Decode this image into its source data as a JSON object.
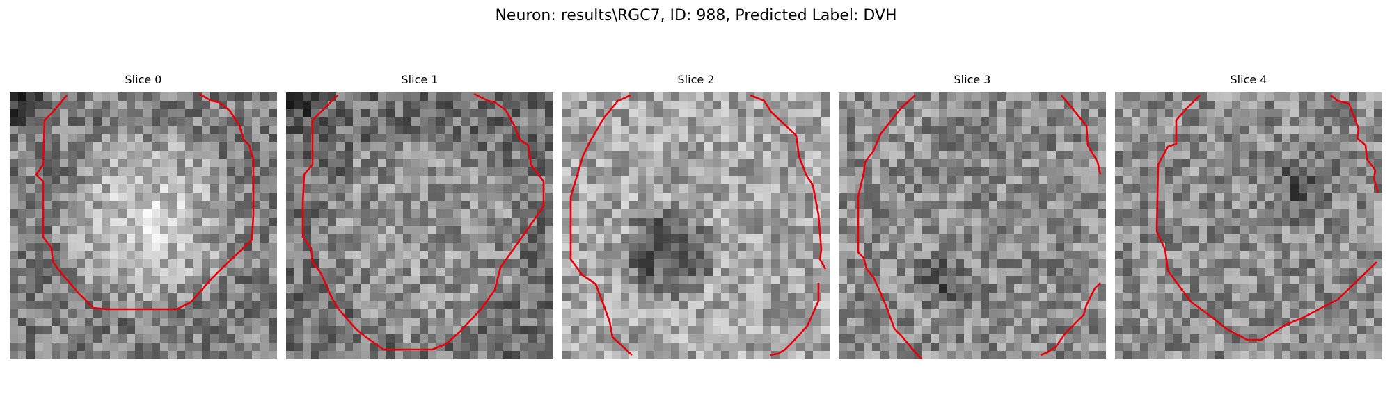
{
  "figure": {
    "title": "Neuron: results\\RGC7, ID: 988, Predicted Label: DVH"
  },
  "panels": [
    {
      "label": "Slice 0"
    },
    {
      "label": "Slice 1"
    },
    {
      "label": "Slice 2"
    },
    {
      "label": "Slice 3"
    },
    {
      "label": "Slice 4"
    }
  ],
  "colors": {
    "contour": "#e8000b",
    "background": "#ffffff"
  },
  "colormap": "gray",
  "image_grid_resolution": 32
}
